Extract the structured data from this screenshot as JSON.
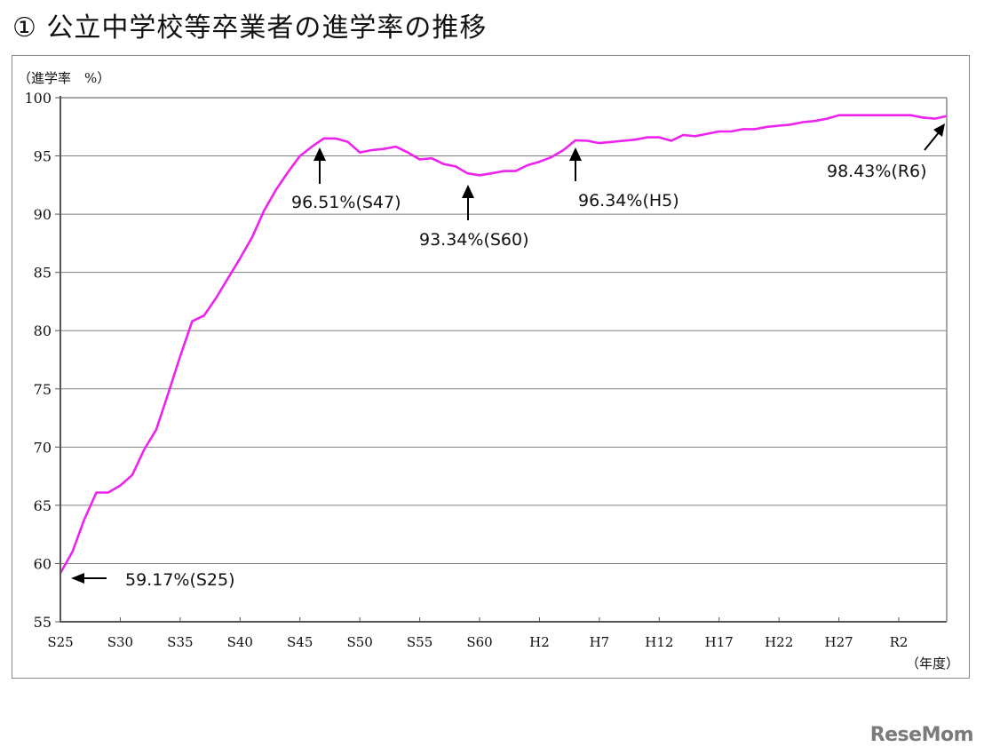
{
  "title": "① 公立中学校等卒業者の進学率の推移",
  "y_unit_label": "（進学率　%）",
  "x_unit_label": "（年度）",
  "watermark": "ReseMom",
  "colors": {
    "line": "#ee22ee",
    "grid": "#808080",
    "axis": "#555555",
    "text": "#111111"
  },
  "annotations": [
    {
      "label": "96.51%(S47)",
      "x_label": "S47",
      "value": 96.51,
      "arrow": "up"
    },
    {
      "label": "93.34%(S60)",
      "x_label": "S60",
      "value": 93.34,
      "arrow": "up"
    },
    {
      "label": "96.34%(H5)",
      "x_label": "H5",
      "value": 96.34,
      "arrow": "up"
    },
    {
      "label": "98.43%(R6)",
      "x_label": "R6",
      "value": 98.43,
      "arrow": "diag"
    },
    {
      "label": "59.17%(S25)",
      "x_label": "S25",
      "value": 59.17,
      "arrow": "left"
    }
  ],
  "chart_data": {
    "type": "line",
    "title": "公立中学校等卒業者の進学率の推移",
    "xlabel": "（年度）",
    "ylabel": "（進学率　%）",
    "ylim": [
      55,
      100
    ],
    "yticks": [
      55,
      60,
      65,
      70,
      75,
      80,
      85,
      90,
      95,
      100
    ],
    "xtick_labels": [
      "S25",
      "S30",
      "S35",
      "S40",
      "S45",
      "S50",
      "S55",
      "S60",
      "H2",
      "H7",
      "H12",
      "H17",
      "H22",
      "H27",
      "R2"
    ],
    "grid": true,
    "legend": null,
    "series": [
      {
        "name": "進学率",
        "x": [
          "S25",
          "S26",
          "S27",
          "S28",
          "S29",
          "S30",
          "S31",
          "S32",
          "S33",
          "S34",
          "S35",
          "S36",
          "S37",
          "S38",
          "S39",
          "S40",
          "S41",
          "S42",
          "S43",
          "S44",
          "S45",
          "S46",
          "S47",
          "S48",
          "S49",
          "S50",
          "S51",
          "S52",
          "S53",
          "S54",
          "S55",
          "S56",
          "S57",
          "S58",
          "S59",
          "S60",
          "S61",
          "S62",
          "S63",
          "H1",
          "H2",
          "H3",
          "H4",
          "H5",
          "H6",
          "H7",
          "H8",
          "H9",
          "H10",
          "H11",
          "H12",
          "H13",
          "H14",
          "H15",
          "H16",
          "H17",
          "H18",
          "H19",
          "H20",
          "H21",
          "H22",
          "H23",
          "H24",
          "H25",
          "H26",
          "H27",
          "H28",
          "H29",
          "H30",
          "R1",
          "R2",
          "R3",
          "R4",
          "R5",
          "R6"
        ],
        "values": [
          59.17,
          61.0,
          63.8,
          66.1,
          66.1,
          66.7,
          67.6,
          69.8,
          71.5,
          74.6,
          77.8,
          80.8,
          81.3,
          82.8,
          84.5,
          86.2,
          88.0,
          90.3,
          92.1,
          93.6,
          95.0,
          95.8,
          96.51,
          96.5,
          96.2,
          95.3,
          95.5,
          95.6,
          95.8,
          95.3,
          94.7,
          94.8,
          94.3,
          94.1,
          93.5,
          93.34,
          93.5,
          93.7,
          93.7,
          94.2,
          94.5,
          94.9,
          95.5,
          96.34,
          96.3,
          96.1,
          96.2,
          96.3,
          96.4,
          96.6,
          96.6,
          96.3,
          96.8,
          96.7,
          96.9,
          97.1,
          97.1,
          97.3,
          97.3,
          97.5,
          97.6,
          97.7,
          97.9,
          98.0,
          98.2,
          98.5,
          98.5,
          98.5,
          98.5,
          98.5,
          98.5,
          98.5,
          98.3,
          98.2,
          98.43
        ]
      }
    ]
  }
}
